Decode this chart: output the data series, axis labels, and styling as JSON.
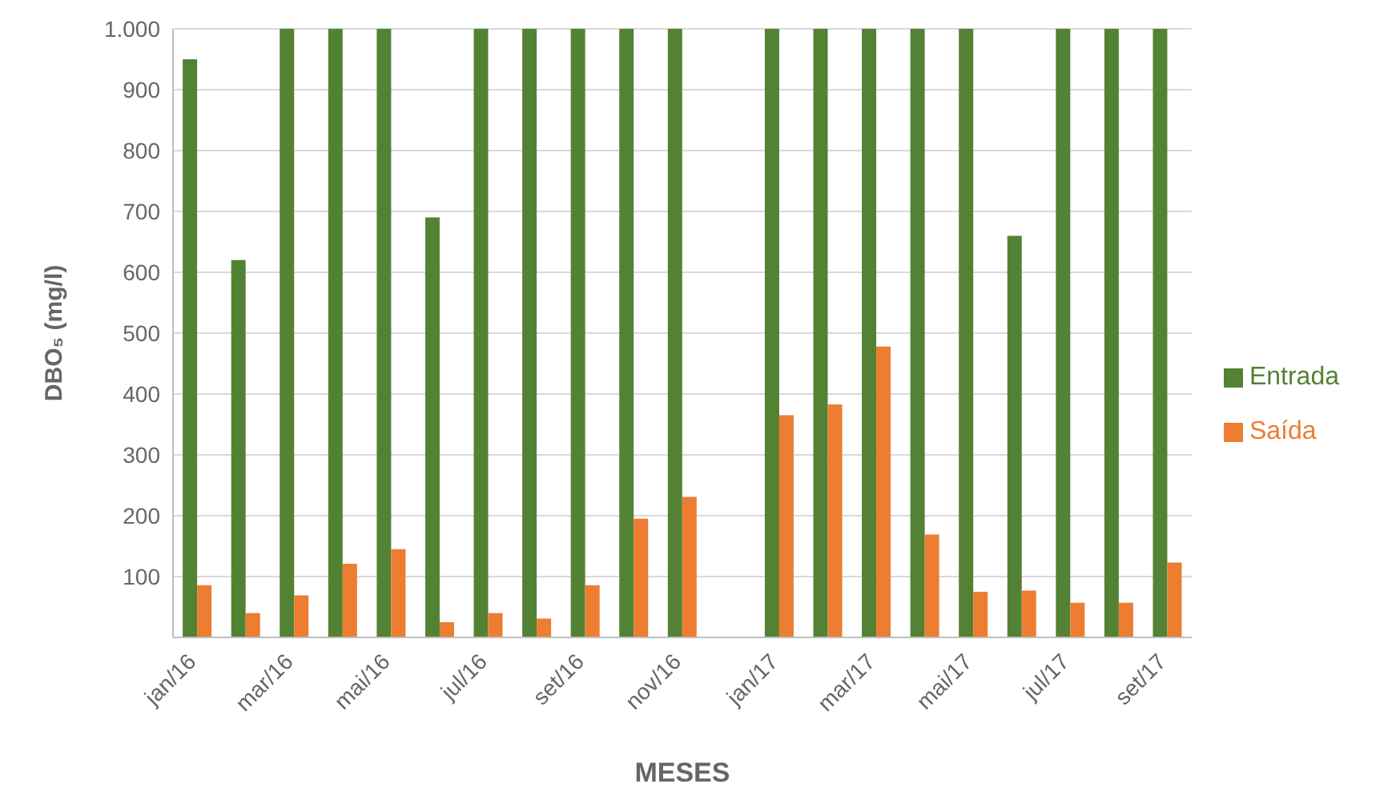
{
  "chart_data": {
    "type": "bar",
    "xlabel": "MESES",
    "ylabel": "DBO₅ (mg/l)",
    "categories": [
      "jan/16",
      null,
      "mar/16",
      null,
      "mai/16",
      null,
      "jul/16",
      null,
      "set/16",
      null,
      "nov/16",
      null,
      "jan/17",
      null,
      "mar/17",
      null,
      "mai/17",
      null,
      "jul/17",
      null,
      "set/17"
    ],
    "series": [
      {
        "name": "Entrada",
        "color": "#548235",
        "values": [
          950,
          620,
          1000,
          1000,
          1000,
          690,
          1000,
          1000,
          1000,
          1000,
          1000,
          null,
          1000,
          1000,
          1000,
          1000,
          1000,
          660,
          1000,
          1000,
          1000
        ]
      },
      {
        "name": "Saída",
        "color": "#ed7d31",
        "values": [
          86,
          40,
          69,
          121,
          145,
          25,
          40,
          31,
          86,
          195,
          231,
          null,
          365,
          383,
          478,
          169,
          75,
          77,
          57,
          57,
          123
        ]
      }
    ],
    "ylim": [
      0,
      1000
    ],
    "yticks": [
      100,
      200,
      300,
      400,
      500,
      600,
      700,
      800,
      900,
      {
        "value": 1000,
        "label": "1.000"
      }
    ],
    "grid": "y",
    "legend": "right"
  }
}
